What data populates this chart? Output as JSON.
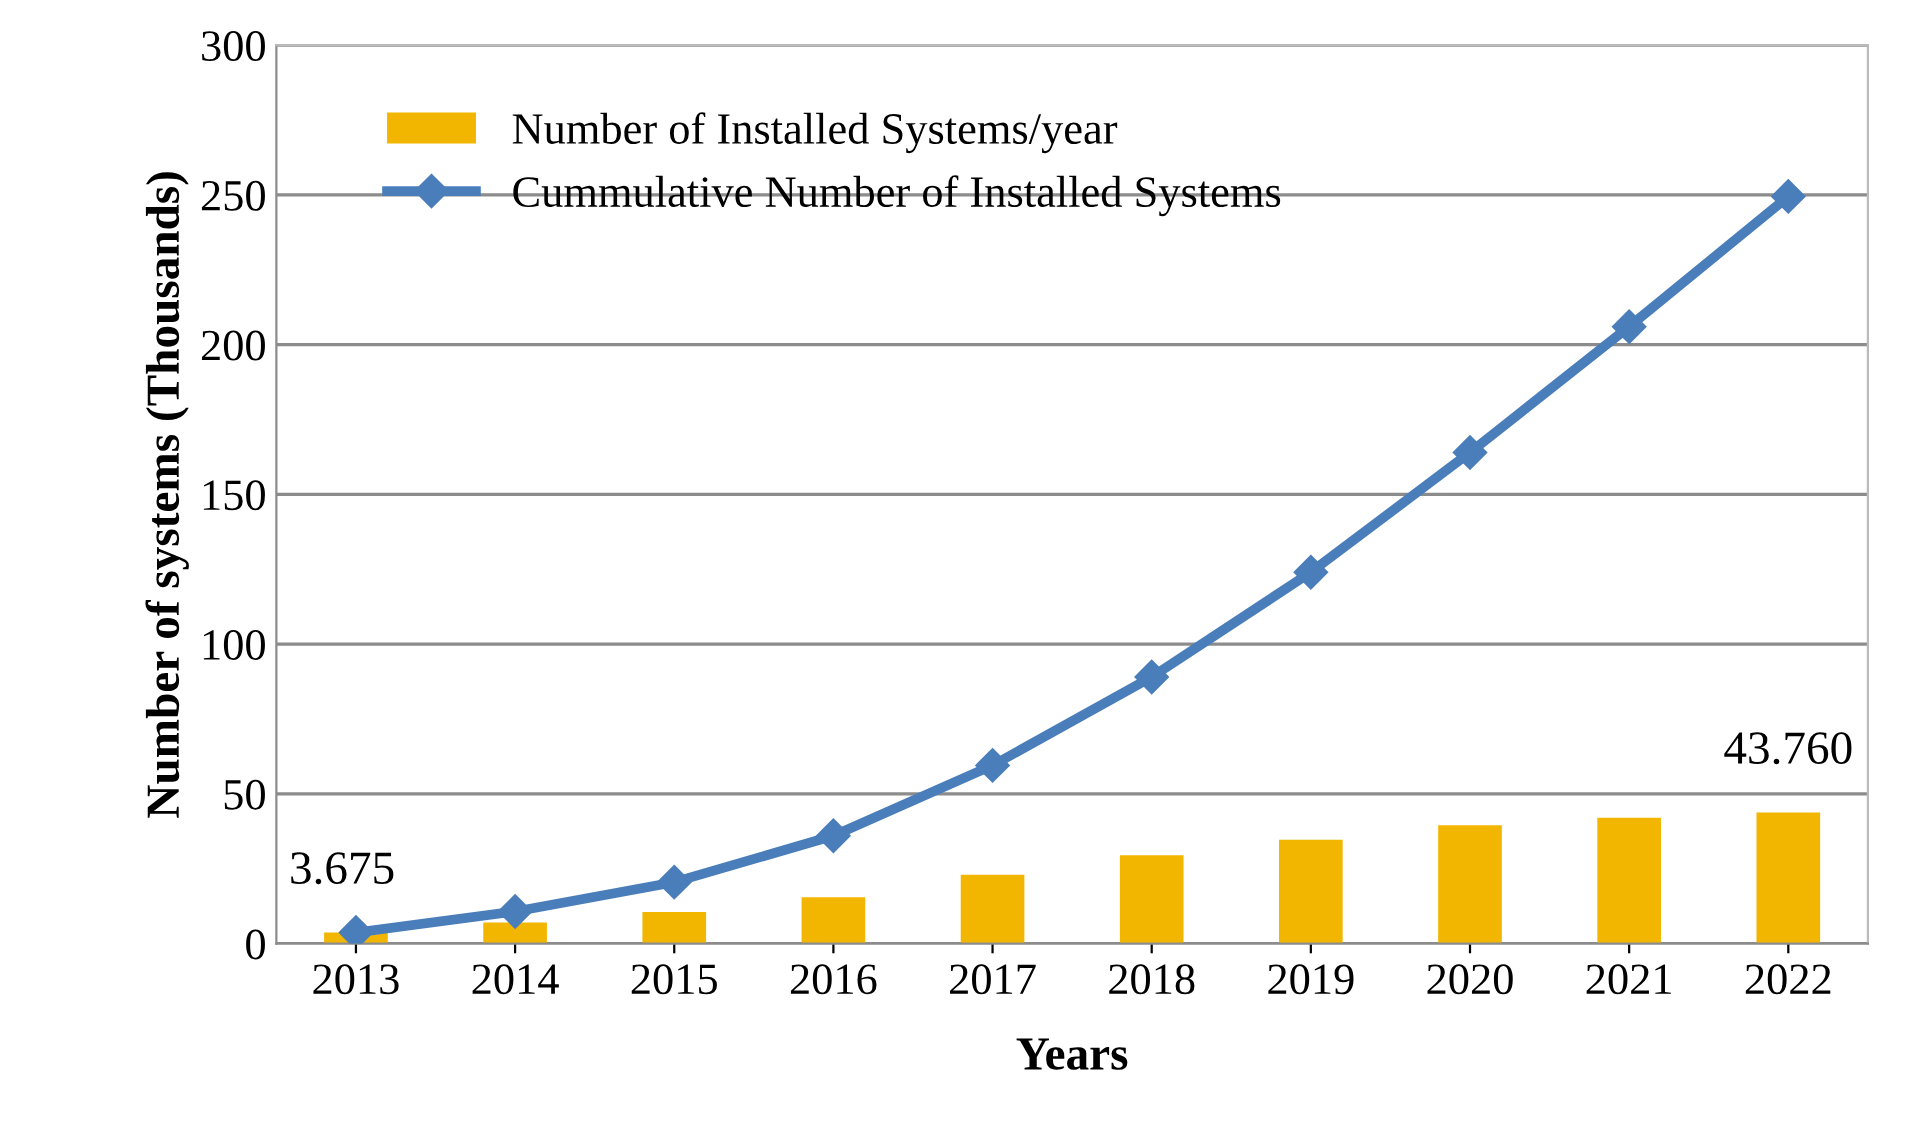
{
  "chart_data": {
    "type": "bar",
    "xlabel": "Years",
    "ylabel": "Number of systems (Thousands)",
    "categories": [
      "2013",
      "2014",
      "2015",
      "2016",
      "2017",
      "2018",
      "2019",
      "2020",
      "2021",
      "2022"
    ],
    "series": [
      {
        "name": "Number of Installed Systems/year",
        "color": "#f2b600",
        "values": [
          3.7,
          7,
          10.5,
          15.5,
          23,
          29.5,
          34.7,
          39.5,
          42,
          43.76
        ],
        "value_labels": [
          null,
          null,
          null,
          null,
          null,
          null,
          null,
          null,
          null,
          "43.760"
        ]
      },
      {
        "name": "Cummulative Number of Installed Systems",
        "type": "line",
        "color": "#4a7ebb",
        "marker": "diamond",
        "values": [
          3.675,
          10.7,
          20.5,
          36,
          59.5,
          89,
          124,
          164,
          206,
          249.5
        ],
        "value_labels": [
          "3.675",
          null,
          null,
          null,
          null,
          null,
          null,
          null,
          null,
          null
        ]
      }
    ],
    "ylim": [
      0,
      300
    ],
    "yticks": [
      0,
      50,
      100,
      150,
      200,
      250,
      300
    ],
    "grid": "y",
    "legend": "top left"
  }
}
